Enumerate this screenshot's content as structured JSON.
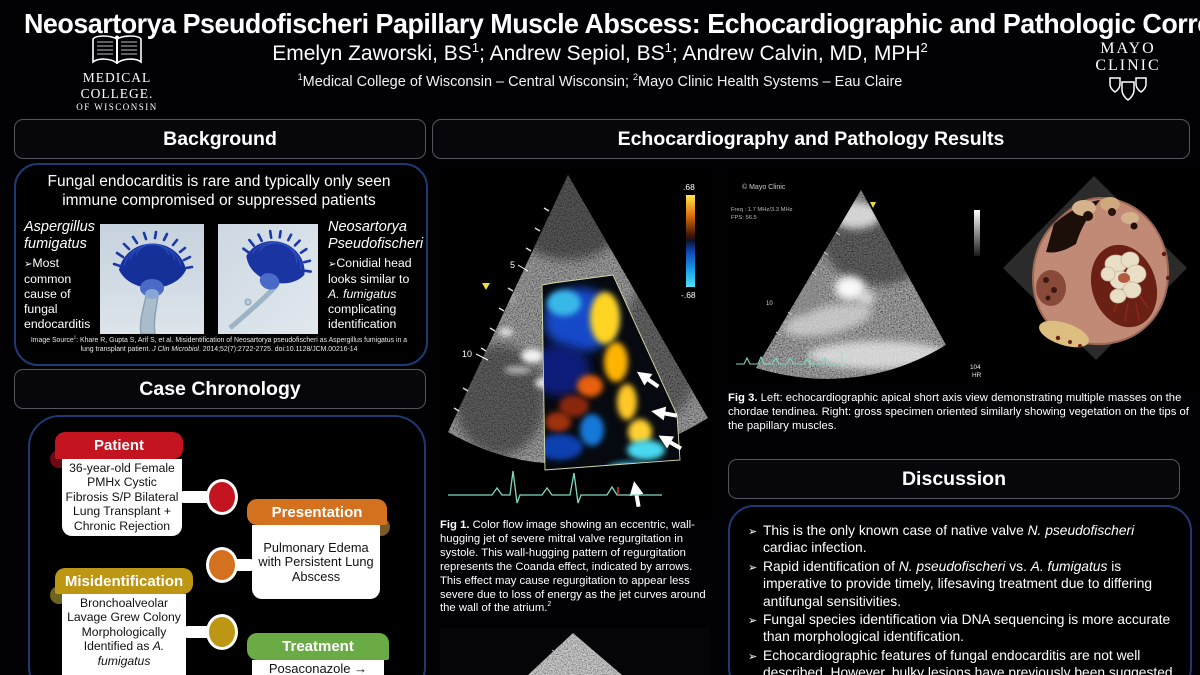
{
  "header": {
    "title": "Neosartorya Pseudofischeri Papillary Muscle Abscess: Echocardiographic and Pathologic Correlates",
    "authors_segments": [
      {
        "t": "Emelyn Zaworski, BS"
      },
      {
        "t": "1",
        "sup": 1
      },
      {
        "t": "; Andrew Sepiol, BS"
      },
      {
        "t": "1",
        "sup": 1
      },
      {
        "t": "; Andrew Calvin, MD, MPH"
      },
      {
        "t": "2",
        "sup": 1
      }
    ],
    "affiliation_segments": [
      {
        "t": "1",
        "sup": 1
      },
      {
        "t": "Medical College of Wisconsin – Central Wisconsin; "
      },
      {
        "t": "2",
        "sup": 1
      },
      {
        "t": "Mayo Clinic Health Systems – Eau Claire"
      }
    ],
    "mcw_logo": {
      "line1": "Medical",
      "line2": "College.",
      "line3": "of Wisconsin"
    },
    "mayo_logo": {
      "line1": "MAYO",
      "line2": "CLINIC"
    }
  },
  "background": {
    "header": "Background",
    "intro": "Fungal endocarditis is rare and typically only seen immune compromised or suppressed patients",
    "left_species": "Aspergillus fumigatus",
    "left_bullet_glyph": "➢",
    "left_bullet": "Most common cause of fungal endocarditis",
    "right_species": "Neosartorya Pseudofischeri",
    "right_bullet_glyph": "➢",
    "right_bullet_segments": [
      {
        "t": "Conidial head looks similar to "
      },
      {
        "t": "A. fumigatus",
        "i": 1
      },
      {
        "t": " complicating identification"
      }
    ],
    "citation_segments": [
      {
        "t": "Image Source"
      },
      {
        "t": "1",
        "sup": 1
      },
      {
        "t": ": Khare R, Gupta S, Arif S, et al. Misidentification of Neosartorya pseudofischeri as Aspergillus fumigatus in a lung transplant patient. "
      },
      {
        "t": "J Clin Microbiol",
        "i": 1
      },
      {
        "t": ". 2014;52(7):2722-2725. doi:10.1128/JCM.00216-14"
      }
    ]
  },
  "chronology": {
    "header": "Case Chronology",
    "cards": [
      {
        "title": "Patient",
        "color": "#c41420",
        "fold": "#6e0a12",
        "body": "36-year-old Female PMHx Cystic Fibrosis S/P Bilateral Lung Transplant + Chronic Rejection"
      },
      {
        "title": "Presentation",
        "color": "#d4711f",
        "fold": "#7a5a28",
        "body": "Pulmonary Edema with Persistent Lung Abscess"
      },
      {
        "title": "Misidentification",
        "color": "#bd9613",
        "fold": "#6e6420",
        "body_segments": [
          {
            "t": "Bronchoalveolar Lavage Grew Colony Morphologically Identified as "
          },
          {
            "t": "A. fumigatus",
            "i": 1
          }
        ]
      },
      {
        "title": "Treatment",
        "color": "#6aab45",
        "fold": "#3c6e2a",
        "body": "Posaconazole →"
      }
    ]
  },
  "results": {
    "header": "Echocardiography and Pathology Results",
    "fig1": {
      "colorbar_top": ".68",
      "colorbar_bottom": "-.68",
      "depth_label_5": "5",
      "depth_label_10": "10",
      "caption_segments": [
        {
          "t": "Fig 1.",
          "b": 1
        },
        {
          "t": " Color flow image showing an eccentric, wall-hugging jet of severe mitral valve regurgitation in systole. This wall-hugging pattern of regurgitation represents the Coanda effect, indicated by arrows. This effect may cause regurgitation to appear less severe due to loss of energy as the jet curves around the wall of the atrium."
        },
        {
          "t": "2",
          "sup": 1
        }
      ]
    },
    "fig3": {
      "copyright": "© Mayo Clinic",
      "freq": "Freq : 1.7 MHz/3.3 MHz",
      "fps": "FPS: 56.5",
      "depth_label_10": "10",
      "hr_value": "104",
      "hr_label": "HR",
      "caption_segments": [
        {
          "t": "Fig 3.",
          "b": 1
        },
        {
          "t": " Left: echocardiographic apical short axis view demonstrating multiple masses on the chordae tendinea. Right: gross specimen oriented similarly showing vegetation on the tips of the papillary muscles."
        }
      ]
    }
  },
  "discussion": {
    "header": "Discussion",
    "bullet_glyph": "➢",
    "bullets": [
      {
        "segments": [
          {
            "t": "This is the only known case of native valve "
          },
          {
            "t": "N. pseudofischeri",
            "i": 1
          },
          {
            "t": " cardiac infection."
          }
        ]
      },
      {
        "segments": [
          {
            "t": " Rapid identification of "
          },
          {
            "t": "N. pseudofischeri",
            "i": 1
          },
          {
            "t": " vs. "
          },
          {
            "t": "A. fumigatus",
            "i": 1
          },
          {
            "t": " is imperative to provide timely, lifesaving treatment due to differing antifungal sensitivities."
          }
        ]
      },
      {
        "segments": [
          {
            "t": "Fungal species identification via DNA sequencing is more accurate than morphological identification."
          }
        ]
      },
      {
        "segments": [
          {
            "t": "Echocardiographic features of fungal endocarditis are not well described. However, bulky lesions have previously been suggested"
          }
        ]
      }
    ]
  },
  "colors": {
    "box_border": "#1e3a74",
    "section_header_border": "#55555f",
    "ecg_trace": "#7fd8c0",
    "doppler_yellow": "#ffd422",
    "doppler_blue": "#1848c8",
    "doppler_cyan": "#40d8f8",
    "doppler_red": "#a03008"
  }
}
